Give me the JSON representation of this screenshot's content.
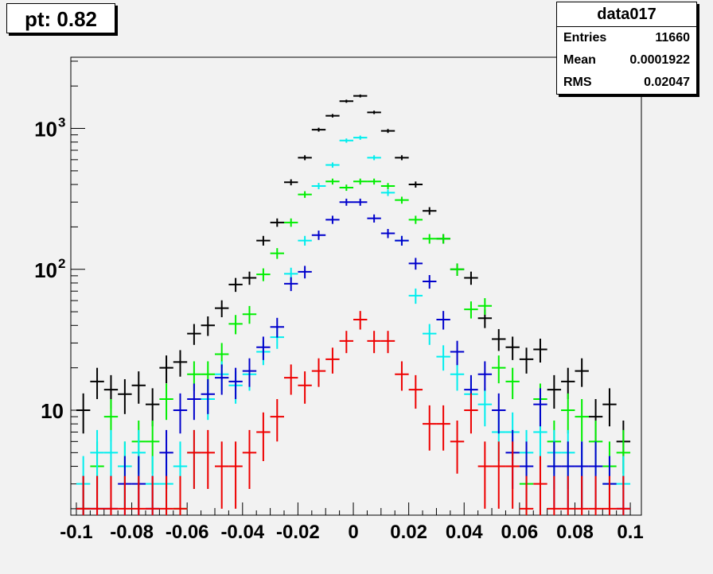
{
  "title_box": {
    "text": "pt: 0.82"
  },
  "stats": {
    "name": "data017",
    "rows": [
      {
        "label": "Entries",
        "value": "11660"
      },
      {
        "label": "Mean",
        "value": "0.0001922"
      },
      {
        "label": "RMS",
        "value": "0.02047"
      }
    ]
  },
  "chart_data": {
    "type": "scatter",
    "title": "",
    "xlabel": "",
    "ylabel": "",
    "xlim": [
      -0.102,
      0.104
    ],
    "ylim": [
      1.8,
      3200
    ],
    "yscale": "log",
    "grid": false,
    "bin_width": 0.005,
    "x_ticks": [
      -0.1,
      -0.08,
      -0.06,
      -0.04,
      -0.02,
      0,
      0.02,
      0.04,
      0.06,
      0.08,
      0.1
    ],
    "x_tick_labels": [
      "-0.1",
      "-0.08",
      "-0.06",
      "-0.04",
      "-0.02",
      "0",
      "0.02",
      "0.04",
      "0.06",
      "0.08",
      "0.1"
    ],
    "y_tick_labels": [
      {
        "value": 10,
        "base": "10",
        "exp": ""
      },
      {
        "value": 100,
        "base": "10",
        "exp": "2"
      },
      {
        "value": 1000,
        "base": "10",
        "exp": "3"
      }
    ],
    "x": [
      -0.0975,
      -0.0925,
      -0.0875,
      -0.0825,
      -0.0775,
      -0.0725,
      -0.0675,
      -0.0625,
      -0.0575,
      -0.0525,
      -0.0475,
      -0.0425,
      -0.0375,
      -0.0325,
      -0.0275,
      -0.0225,
      -0.0175,
      -0.0125,
      -0.0075,
      -0.0025,
      0.0025,
      0.0075,
      0.0125,
      0.0175,
      0.0225,
      0.0275,
      0.0325,
      0.0375,
      0.0425,
      0.0475,
      0.0525,
      0.0575,
      0.0625,
      0.0675,
      0.0725,
      0.0775,
      0.0825,
      0.0875,
      0.0925,
      0.0975
    ],
    "series": [
      {
        "color": "#000000",
        "values": [
          10,
          16,
          14,
          13,
          15,
          11,
          20,
          22,
          35,
          40,
          53,
          78,
          87,
          160,
          215,
          415,
          620,
          980,
          1230,
          1560,
          1700,
          1300,
          960,
          620,
          400,
          260,
          165,
          100,
          87,
          45,
          32,
          28,
          23,
          27,
          14,
          16,
          19,
          9,
          11,
          6
        ]
      },
      {
        "color": "#00ee00",
        "values": [
          2,
          4,
          9,
          4,
          6,
          6,
          12,
          2,
          18,
          18,
          25,
          41,
          48,
          92,
          130,
          215,
          340,
          390,
          420,
          380,
          420,
          420,
          390,
          310,
          225,
          165,
          165,
          100,
          52,
          55,
          20,
          16,
          3,
          12,
          6,
          10,
          9,
          6,
          4,
          5
        ]
      },
      {
        "color": "#00eeee",
        "values": [
          3,
          5,
          5,
          4,
          5,
          3,
          3,
          4,
          5,
          12,
          18,
          15,
          18,
          26,
          33,
          93,
          160,
          390,
          550,
          820,
          860,
          620,
          350,
          160,
          65,
          35,
          24,
          18,
          13,
          11,
          7,
          7,
          5,
          7,
          5,
          5,
          4,
          4,
          3,
          3
        ]
      },
      {
        "color": "#0000cc",
        "values": [
          2,
          2,
          2,
          3,
          3,
          2,
          5,
          10,
          12,
          13,
          17,
          16,
          19,
          28,
          39,
          79,
          96,
          175,
          225,
          300,
          300,
          230,
          180,
          160,
          110,
          82,
          44,
          26,
          14,
          18,
          10,
          5,
          4,
          11,
          4,
          4,
          4,
          4,
          3,
          2
        ]
      },
      {
        "color": "#ee0000",
        "values": [
          2,
          2,
          2,
          2,
          2,
          2,
          2,
          2,
          5,
          5,
          4,
          4,
          5,
          7,
          9,
          17,
          15,
          19,
          23,
          31,
          44,
          31,
          31,
          18,
          14,
          8,
          8,
          6,
          10,
          4,
          4,
          4,
          2,
          3,
          2,
          2,
          2,
          2,
          2,
          2
        ]
      }
    ]
  }
}
